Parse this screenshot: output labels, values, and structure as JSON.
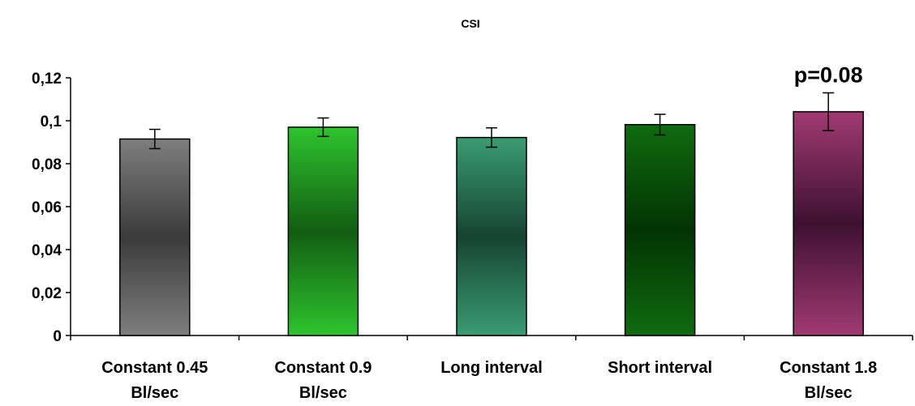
{
  "chart_data": {
    "type": "bar",
    "title": "CSI",
    "xlabel": "",
    "ylabel": "",
    "ylim": [
      0,
      0.12
    ],
    "yticks": [
      "0",
      "0,02",
      "0,04",
      "0,06",
      "0,08",
      "0,1",
      "0,12"
    ],
    "categories": [
      [
        "Constant 0.45",
        "Bl/sec"
      ],
      [
        "Constant 0.9",
        "Bl/sec"
      ],
      [
        "Long interval"
      ],
      [
        "Short interval"
      ],
      [
        "Constant 1.8",
        "Bl/sec"
      ]
    ],
    "values": [
      0.0915,
      0.097,
      0.0922,
      0.0982,
      0.1042
    ],
    "error": [
      0.0045,
      0.0043,
      0.0045,
      0.0048,
      0.0088
    ],
    "colors": [
      {
        "edge": "#7e7e7e",
        "mid": "#3b3b3b"
      },
      {
        "edge": "#2ec42e",
        "mid": "#125d12"
      },
      {
        "edge": "#3a9c72",
        "mid": "#164432"
      },
      {
        "edge": "#0f6b10",
        "mid": "#023302"
      },
      {
        "edge": "#a03a72",
        "mid": "#3e1030"
      }
    ],
    "annotations": [
      {
        "category_index": 4,
        "text": "p=0.08"
      }
    ],
    "grid": false,
    "legend": "none"
  }
}
